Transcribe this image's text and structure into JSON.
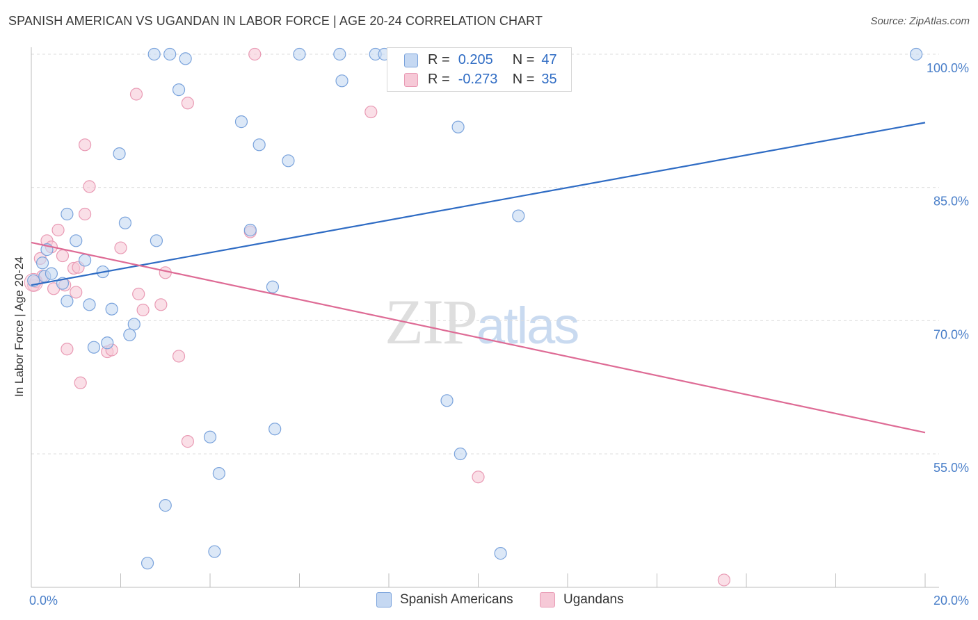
{
  "header": {
    "title": "SPANISH AMERICAN VS UGANDAN IN LABOR FORCE | AGE 20-24 CORRELATION CHART",
    "source": "Source: ZipAtlas.com"
  },
  "watermark": {
    "zip": "ZIP",
    "atlas": "atlas"
  },
  "legend_top": {
    "rows": [
      {
        "r_label": "R =",
        "r_value": "0.205",
        "n_label": "N =",
        "n_value": "47"
      },
      {
        "r_label": "R =",
        "r_value": "-0.273",
        "n_label": "N =",
        "n_value": "35"
      }
    ]
  },
  "legend_bottom": {
    "items": [
      "Spanish Americans",
      "Ugandans"
    ]
  },
  "colors": {
    "blue_fill": "#c5d8f2",
    "blue_stroke": "#7aa3dc",
    "blue_line": "#2f6cc4",
    "pink_fill": "#f6c9d7",
    "pink_stroke": "#e99ab4",
    "pink_line": "#de6b95",
    "grid": "#dcdcdc",
    "tick_label": "#4a7fc9"
  },
  "chart_data": {
    "type": "scatter",
    "title": "SPANISH AMERICAN VS UGANDAN IN LABOR FORCE | AGE 20-24 CORRELATION CHART",
    "xlabel": "",
    "ylabel": "In Labor Force | Age 20-24",
    "xlim": [
      0,
      20
    ],
    "ylim": [
      40,
      101
    ],
    "x_tick_labels": [
      "0.0%",
      "20.0%"
    ],
    "y_ticks": [
      55,
      70,
      85,
      100
    ],
    "y_tick_labels": [
      "55.0%",
      "70.0%",
      "85.0%",
      "100.0%"
    ],
    "grid": true,
    "legend_placement": "top-center",
    "series": [
      {
        "name": "Spanish Americans",
        "color": "#7aa3dc",
        "r": 0.205,
        "n": 47,
        "trend": {
          "x": [
            0,
            20
          ],
          "y": [
            74.0,
            92.3
          ]
        },
        "points": [
          [
            0.05,
            74.5
          ],
          [
            0.25,
            76.5
          ],
          [
            0.35,
            78.0
          ],
          [
            0.3,
            75.0
          ],
          [
            0.45,
            75.3
          ],
          [
            0.7,
            74.2
          ],
          [
            0.8,
            82.0
          ],
          [
            1.0,
            79.0
          ],
          [
            1.6,
            75.5
          ],
          [
            1.2,
            76.8
          ],
          [
            0.8,
            72.2
          ],
          [
            1.3,
            71.8
          ],
          [
            1.8,
            71.3
          ],
          [
            2.1,
            81.0
          ],
          [
            2.8,
            79.0
          ],
          [
            2.3,
            69.6
          ],
          [
            2.2,
            68.4
          ],
          [
            1.4,
            67.0
          ],
          [
            1.7,
            67.5
          ],
          [
            1.97,
            88.8
          ],
          [
            2.75,
            100.0
          ],
          [
            3.1,
            100.0
          ],
          [
            3.45,
            99.5
          ],
          [
            3.3,
            96.0
          ],
          [
            4.7,
            92.4
          ],
          [
            5.1,
            89.8
          ],
          [
            5.75,
            88.0
          ],
          [
            6.0,
            100.0
          ],
          [
            6.9,
            100.0
          ],
          [
            6.95,
            97.0
          ],
          [
            7.7,
            100.0
          ],
          [
            7.9,
            100.0
          ],
          [
            9.6,
            100.0
          ],
          [
            9.55,
            91.8
          ],
          [
            4.9,
            80.2
          ],
          [
            5.4,
            73.8
          ],
          [
            10.9,
            81.8
          ],
          [
            9.3,
            61.0
          ],
          [
            5.45,
            57.8
          ],
          [
            4.0,
            56.9
          ],
          [
            9.6,
            55.0
          ],
          [
            4.2,
            52.8
          ],
          [
            3.0,
            49.2
          ],
          [
            4.1,
            44.0
          ],
          [
            2.6,
            42.7
          ],
          [
            10.5,
            43.8
          ],
          [
            19.8,
            100.0
          ]
        ]
      },
      {
        "name": "Ugandans",
        "color": "#e99ab4",
        "r": -0.273,
        "n": 35,
        "trend": {
          "x": [
            0,
            20
          ],
          "y": [
            78.8,
            57.4
          ]
        },
        "points": [
          [
            0.05,
            74.0
          ],
          [
            0.2,
            77.0
          ],
          [
            0.25,
            75.0
          ],
          [
            0.35,
            79.0
          ],
          [
            0.45,
            78.3
          ],
          [
            0.6,
            80.2
          ],
          [
            0.5,
            73.6
          ],
          [
            0.7,
            77.3
          ],
          [
            0.95,
            75.9
          ],
          [
            0.75,
            74.0
          ],
          [
            1.0,
            73.2
          ],
          [
            1.05,
            76.0
          ],
          [
            1.2,
            82.0
          ],
          [
            1.3,
            85.1
          ],
          [
            1.2,
            89.8
          ],
          [
            2.35,
            95.5
          ],
          [
            3.5,
            94.5
          ],
          [
            5.0,
            100.0
          ],
          [
            7.6,
            93.5
          ],
          [
            9.0,
            100.0
          ],
          [
            2.0,
            78.2
          ],
          [
            2.4,
            73.0
          ],
          [
            2.5,
            71.2
          ],
          [
            2.9,
            71.8
          ],
          [
            3.0,
            75.4
          ],
          [
            4.9,
            80.0
          ],
          [
            3.3,
            66.0
          ],
          [
            0.8,
            66.8
          ],
          [
            1.7,
            66.5
          ],
          [
            1.8,
            66.7
          ],
          [
            1.1,
            63.0
          ],
          [
            3.5,
            56.4
          ],
          [
            10.0,
            52.4
          ],
          [
            15.5,
            40.8
          ],
          [
            0.1,
            74.4
          ]
        ]
      }
    ]
  }
}
